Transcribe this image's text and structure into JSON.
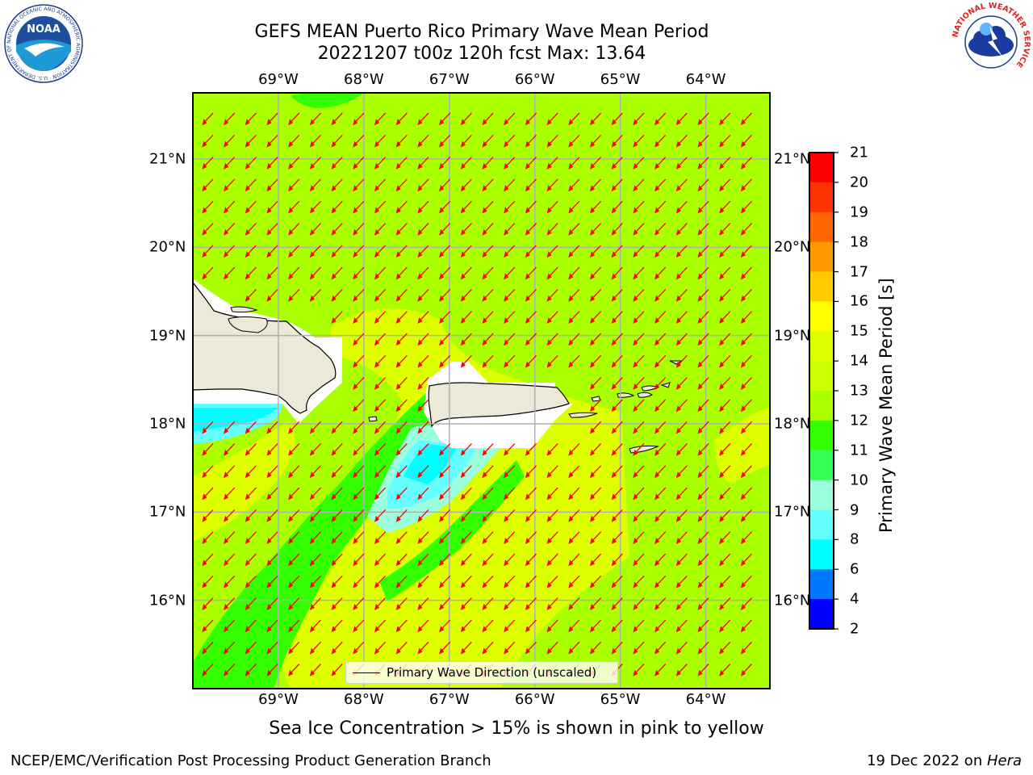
{
  "title": {
    "line1": "GEFS MEAN Puerto Rico Primary Wave Mean Period",
    "line2": "20221207 t00z 120h fcst   Max: 13.64"
  },
  "logos": {
    "left": {
      "name": "noaa-logo",
      "text": "NOAA",
      "ring_text": "NATIONAL OCEANIC AND ATMOSPHERIC ADMINISTRATION · U.S. DEPARTMENT OF COMMERCE"
    },
    "right": {
      "name": "nws-logo",
      "ring_text": "NATIONAL WEATHER SERVICE"
    }
  },
  "map": {
    "lon_labels": [
      "69°W",
      "68°W",
      "67°W",
      "66°W",
      "65°W",
      "64°W"
    ],
    "lat_labels": [
      "21°N",
      "20°N",
      "19°N",
      "18°N",
      "17°N",
      "16°N"
    ],
    "lon_values": [
      -69,
      -68,
      -67,
      -66,
      -65,
      -64
    ],
    "lat_values": [
      21,
      20,
      19,
      18,
      17,
      16
    ],
    "lon_range": [
      -70.0,
      -63.25
    ],
    "lat_range": [
      15.0,
      21.75
    ],
    "grid": true,
    "background_color": "#aaff00",
    "land_color": "#ece9d8",
    "arrow_color": "#ff0000",
    "arrow_direction": "toward southwest"
  },
  "colorbar": {
    "title": "Primary Wave Mean Period [s]",
    "ticks": [
      "21",
      "20",
      "19",
      "18",
      "17",
      "16",
      "15",
      "14",
      "13",
      "12",
      "11",
      "10",
      "9",
      "8",
      "6",
      "4",
      "2"
    ],
    "colors": [
      "#ff0000",
      "#ff3300",
      "#ff6600",
      "#ff9900",
      "#ffcc00",
      "#ffff00",
      "#ddff00",
      "#ccff00",
      "#aaff00",
      "#33ff00",
      "#33ff55",
      "#99ffdd",
      "#66ffff",
      "#00ffff",
      "#0077ff",
      "#0000ff"
    ]
  },
  "legend": {
    "label": "Primary Wave Direction (unscaled)"
  },
  "note": "Sea Ice Concentration > 15% is shown in pink to yellow",
  "footer": {
    "left": "NCEP/EMC/Verification Post Processing Product Generation Branch",
    "right_date": "19 Dec 2022 on ",
    "right_host": "Hera"
  }
}
